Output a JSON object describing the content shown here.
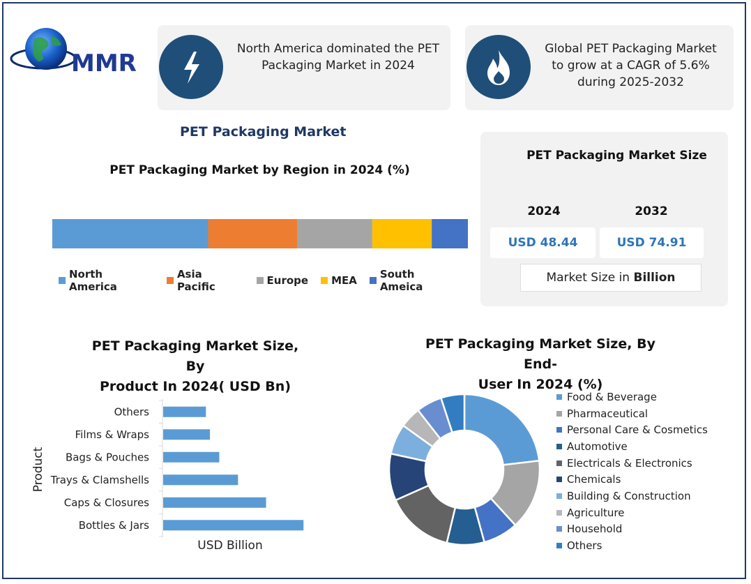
{
  "brand": {
    "logo_text": "MMR"
  },
  "cards": [
    {
      "icon": "lightning-icon",
      "text": [
        "North America dominated the PET",
        "Packaging Market in 2024"
      ]
    },
    {
      "icon": "flame-icon",
      "text": [
        "Global PET Packaging Market",
        "to grow at a CAGR of 5.6%",
        "during 2025-2032"
      ]
    }
  ],
  "main_title": "PET Packaging Market",
  "market_size": {
    "title": "PET Packaging Market Size",
    "year1": "2024",
    "year2": "2032",
    "value1": "USD 48.44",
    "value2": "USD 74.91",
    "note_prefix": "Market Size in ",
    "note_bold": "Billion"
  },
  "colors": {
    "north_america": "#5b9bd5",
    "asia_pacific": "#ed7d31",
    "europe": "#a5a5a5",
    "mea": "#ffc000",
    "south_america": "#4472c4",
    "bar": "#5b9bd5",
    "card_circle": "#1f4e79",
    "title": "#1f3864",
    "value": "#2e75b6"
  },
  "chart_data": [
    {
      "type": "bar",
      "orientation": "stacked-horizontal",
      "title": "PET Packaging Market by Region in 2024 (%)",
      "categories": [
        "North America",
        "Asia Pacific",
        "Europe",
        "MEA",
        "South Ameica"
      ],
      "values": [
        37.5,
        21.5,
        18,
        14.3,
        8.7
      ],
      "colors": [
        "#5b9bd5",
        "#ed7d31",
        "#a5a5a5",
        "#ffc000",
        "#4472c4"
      ],
      "legend": "bottom"
    },
    {
      "type": "bar",
      "orientation": "horizontal",
      "title_lines": [
        "PET Packaging Market Size, By",
        "Product In 2024( USD Bn)"
      ],
      "categories": [
        "Others",
        "Films & Wraps",
        "Bags & Pouches",
        "Trays & Clamshells",
        "Caps & Closures",
        "Bottles & Jars"
      ],
      "values": [
        3.2,
        3.5,
        4.2,
        5.6,
        7.7,
        10.5
      ],
      "xlabel": "USD Billion",
      "ylabel": "Product",
      "xlim": [
        0,
        12
      ]
    },
    {
      "type": "pie",
      "donut": true,
      "title_lines": [
        "PET Packaging Market Size, By End-",
        "User In 2024 (%)"
      ],
      "categories": [
        "Food & Beverage",
        "Pharmaceutical",
        "Personal Care & Cosmetics",
        "Automotive",
        "Electricals & Electronics",
        "Chemicals",
        "Building & Construction",
        "Agriculture",
        "Household",
        "Others"
      ],
      "values": [
        23,
        15,
        7.5,
        8,
        14.5,
        10,
        6.5,
        4.5,
        5.5,
        5
      ],
      "colors": [
        "#5b9bd5",
        "#a5a5a5",
        "#4472c4",
        "#255e91",
        "#636363",
        "#264478",
        "#7cafdd",
        "#b7b7b7",
        "#698ed0",
        "#327dc2"
      ],
      "legend": "right"
    }
  ]
}
